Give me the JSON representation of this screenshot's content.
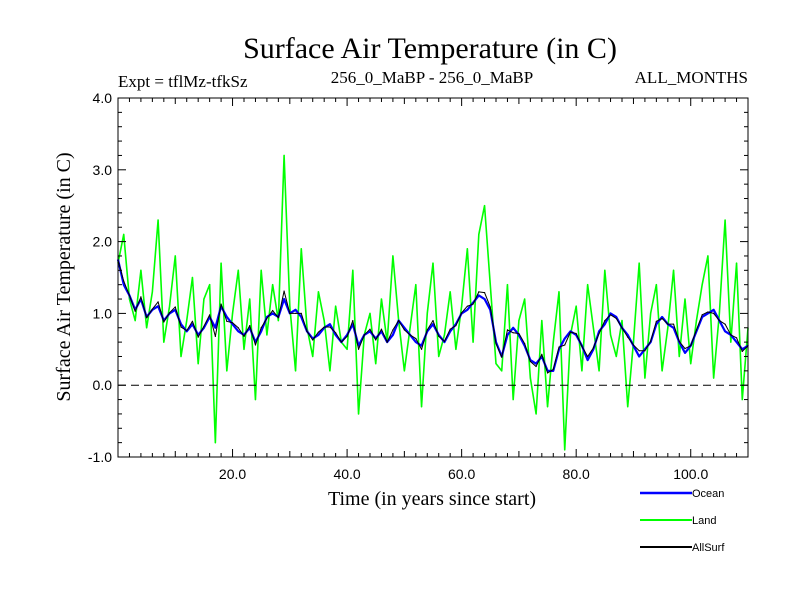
{
  "chart_data": {
    "type": "line",
    "title": "Surface Air Temperature (in C)",
    "subtitle_left": "Expt = tflMz-tfkSz",
    "subtitle_center": "256_0_MaBP - 256_0_MaBP",
    "subtitle_right": "ALL_MONTHS",
    "xlabel": "Time (in years since start)",
    "ylabel": "Surface Air Temperature (in C)",
    "xlim": [
      0,
      110
    ],
    "ylim": [
      -1.0,
      4.0
    ],
    "xticks": [
      20,
      40,
      60,
      80,
      100
    ],
    "xtick_labels": [
      "20.0",
      "40.0",
      "60.0",
      "80.0",
      "100.0"
    ],
    "yticks": [
      -1.0,
      0.0,
      1.0,
      2.0,
      3.0,
      4.0
    ],
    "ytick_labels": [
      "-1.0",
      "0.0",
      "1.0",
      "2.0",
      "3.0",
      "4.0"
    ],
    "reference_line": 0.0,
    "legend_placement": "bottom-right, below plot",
    "series": [
      {
        "name": "Land",
        "color": "#00ff00",
        "x": [
          0,
          1,
          2,
          3,
          4,
          5,
          6,
          7,
          8,
          9,
          10,
          11,
          12,
          13,
          14,
          15,
          16,
          17,
          18,
          19,
          20,
          21,
          22,
          23,
          24,
          25,
          26,
          27,
          28,
          29,
          30,
          31,
          32,
          33,
          34,
          35,
          36,
          37,
          38,
          39,
          40,
          41,
          42,
          43,
          44,
          45,
          46,
          47,
          48,
          49,
          50,
          51,
          52,
          53,
          54,
          55,
          56,
          57,
          58,
          59,
          60,
          61,
          62,
          63,
          64,
          65,
          66,
          67,
          68,
          69,
          70,
          71,
          72,
          73,
          74,
          75,
          76,
          77,
          78,
          79,
          80,
          81,
          82,
          83,
          84,
          85,
          86,
          87,
          88,
          89,
          90,
          91,
          92,
          93,
          94,
          95,
          96,
          97,
          98,
          99,
          100,
          101,
          102,
          103,
          104,
          105,
          106,
          107,
          108,
          109,
          110
        ],
        "values": [
          1.7,
          2.1,
          1.2,
          0.9,
          1.6,
          0.8,
          1.3,
          2.3,
          0.6,
          1.1,
          1.8,
          0.4,
          0.9,
          1.5,
          0.3,
          1.2,
          1.4,
          -0.8,
          1.7,
          0.2,
          1.0,
          1.6,
          0.5,
          1.2,
          -0.2,
          1.6,
          0.7,
          1.4,
          0.9,
          3.2,
          1.1,
          0.2,
          1.9,
          0.8,
          0.4,
          1.3,
          0.9,
          0.2,
          1.1,
          0.6,
          0.5,
          1.6,
          -0.4,
          0.7,
          1.0,
          0.3,
          1.2,
          0.6,
          1.8,
          0.9,
          0.2,
          0.8,
          1.4,
          -0.3,
          1.0,
          1.7,
          0.4,
          0.7,
          1.3,
          0.5,
          1.1,
          1.9,
          0.6,
          2.1,
          2.5,
          1.4,
          0.3,
          0.2,
          1.4,
          -0.2,
          0.9,
          1.2,
          0.1,
          -0.4,
          0.9,
          -0.3,
          0.6,
          1.3,
          -0.9,
          0.7,
          1.1,
          0.2,
          1.4,
          0.8,
          0.2,
          1.6,
          0.7,
          0.4,
          0.9,
          -0.3,
          0.6,
          1.7,
          0.1,
          1.0,
          1.4,
          0.2,
          0.8,
          1.6,
          0.4,
          1.2,
          0.3,
          0.9,
          1.4,
          1.8,
          0.1,
          1.0,
          2.3,
          0.6,
          1.7,
          -0.2,
          0.8
        ]
      },
      {
        "name": "Ocean",
        "color": "#0000ff",
        "x": [
          0,
          1,
          2,
          3,
          4,
          5,
          6,
          7,
          8,
          9,
          10,
          11,
          12,
          13,
          14,
          15,
          16,
          17,
          18,
          19,
          20,
          21,
          22,
          23,
          24,
          25,
          26,
          27,
          28,
          29,
          30,
          31,
          32,
          33,
          34,
          35,
          36,
          37,
          38,
          39,
          40,
          41,
          42,
          43,
          44,
          45,
          46,
          47,
          48,
          49,
          50,
          51,
          52,
          53,
          54,
          55,
          56,
          57,
          58,
          59,
          60,
          61,
          62,
          63,
          64,
          65,
          66,
          67,
          68,
          69,
          70,
          71,
          72,
          73,
          74,
          75,
          76,
          77,
          78,
          79,
          80,
          81,
          82,
          83,
          84,
          85,
          86,
          87,
          88,
          89,
          90,
          91,
          92,
          93,
          94,
          95,
          96,
          97,
          98,
          99,
          100,
          101,
          102,
          103,
          104,
          105,
          106,
          107,
          108,
          109,
          110
        ],
        "values": [
          1.75,
          1.4,
          1.25,
          1.05,
          1.2,
          0.95,
          1.05,
          1.1,
          0.9,
          1.0,
          1.05,
          0.85,
          0.75,
          0.85,
          0.7,
          0.8,
          0.95,
          0.8,
          1.1,
          0.95,
          0.85,
          0.75,
          0.7,
          0.8,
          0.6,
          0.75,
          0.95,
          1.0,
          0.95,
          1.2,
          1.0,
          1.05,
          0.95,
          0.75,
          0.65,
          0.7,
          0.8,
          0.85,
          0.7,
          0.6,
          0.7,
          0.85,
          0.55,
          0.7,
          0.75,
          0.65,
          0.75,
          0.6,
          0.7,
          0.9,
          0.8,
          0.7,
          0.6,
          0.55,
          0.75,
          0.85,
          0.7,
          0.6,
          0.75,
          0.85,
          1.0,
          1.05,
          1.15,
          1.25,
          1.2,
          1.05,
          0.6,
          0.4,
          0.7,
          0.8,
          0.7,
          0.55,
          0.35,
          0.3,
          0.4,
          0.2,
          0.2,
          0.5,
          0.65,
          0.75,
          0.7,
          0.55,
          0.35,
          0.5,
          0.75,
          0.85,
          1.0,
          0.95,
          0.8,
          0.7,
          0.55,
          0.4,
          0.5,
          0.6,
          0.85,
          0.95,
          0.85,
          0.8,
          0.6,
          0.45,
          0.55,
          0.75,
          0.95,
          1.0,
          1.05,
          0.9,
          0.75,
          0.7,
          0.6,
          0.5,
          0.55
        ]
      },
      {
        "name": "AllSurf",
        "color": "#000000",
        "x": [
          0,
          1,
          2,
          3,
          4,
          5,
          6,
          7,
          8,
          9,
          10,
          11,
          12,
          13,
          14,
          15,
          16,
          17,
          18,
          19,
          20,
          21,
          22,
          23,
          24,
          25,
          26,
          27,
          28,
          29,
          30,
          31,
          32,
          33,
          34,
          35,
          36,
          37,
          38,
          39,
          40,
          41,
          42,
          43,
          44,
          45,
          46,
          47,
          48,
          49,
          50,
          51,
          52,
          53,
          54,
          55,
          56,
          57,
          58,
          59,
          60,
          61,
          62,
          63,
          64,
          65,
          66,
          67,
          68,
          69,
          70,
          71,
          72,
          73,
          74,
          75,
          76,
          77,
          78,
          79,
          80,
          81,
          82,
          83,
          84,
          85,
          86,
          87,
          88,
          89,
          90,
          91,
          92,
          93,
          94,
          95,
          96,
          97,
          98,
          99,
          100,
          101,
          102,
          103,
          104,
          105,
          106,
          107,
          108,
          109,
          110
        ],
        "values": [
          1.74,
          1.45,
          1.25,
          1.03,
          1.23,
          0.94,
          1.06,
          1.16,
          0.88,
          1.01,
          1.09,
          0.81,
          0.76,
          0.89,
          0.67,
          0.82,
          0.98,
          0.68,
          1.13,
          0.89,
          0.87,
          0.8,
          0.68,
          0.83,
          0.56,
          0.8,
          0.93,
          1.04,
          0.94,
          1.31,
          1.0,
          1.0,
          1.0,
          0.75,
          0.63,
          0.74,
          0.81,
          0.81,
          0.73,
          0.6,
          0.68,
          0.9,
          0.5,
          0.7,
          0.78,
          0.63,
          0.78,
          0.6,
          0.77,
          0.9,
          0.77,
          0.7,
          0.65,
          0.5,
          0.77,
          0.9,
          0.68,
          0.61,
          0.78,
          0.83,
          1.01,
          1.1,
          1.13,
          1.3,
          1.29,
          1.09,
          0.58,
          0.39,
          0.77,
          0.73,
          0.72,
          0.58,
          0.33,
          0.26,
          0.43,
          0.17,
          0.22,
          0.53,
          0.56,
          0.74,
          0.72,
          0.54,
          0.4,
          0.52,
          0.72,
          0.9,
          0.98,
          0.93,
          0.8,
          0.67,
          0.56,
          0.48,
          0.48,
          0.61,
          0.89,
          0.93,
          0.85,
          0.85,
          0.61,
          0.51,
          0.55,
          0.77,
          0.98,
          1.02,
          1.0,
          0.9,
          0.85,
          0.7,
          0.66,
          0.47,
          0.55
        ]
      }
    ]
  }
}
